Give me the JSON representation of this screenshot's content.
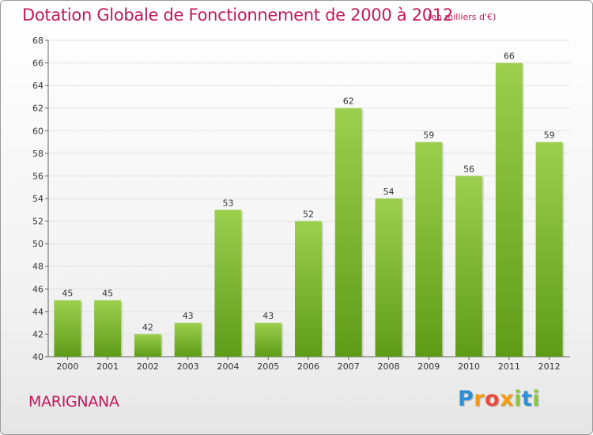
{
  "header": {
    "title": "Dotation Globale de Fonctionnement de 2000 à 2012",
    "unit_note": "(en milliers d'€)"
  },
  "footer": {
    "commune": "MARIGNANA",
    "logo_letters": [
      "P",
      "r",
      "o",
      "x",
      "i",
      "t",
      "i"
    ]
  },
  "colors": {
    "accent": "#c2185b",
    "bar_top": "#9ccf4e",
    "bar_bottom": "#5e9c18",
    "grid": "#e0e0e0"
  },
  "chart_data": {
    "type": "bar",
    "title": "Dotation Globale de Fonctionnement de 2000 à 2012",
    "subtitle": "(en milliers d'€)",
    "categories": [
      "2000",
      "2001",
      "2002",
      "2003",
      "2004",
      "2005",
      "2006",
      "2007",
      "2008",
      "2009",
      "2010",
      "2011",
      "2012"
    ],
    "values": [
      45,
      45,
      42,
      43,
      53,
      43,
      52,
      62,
      54,
      59,
      56,
      66,
      59
    ],
    "ylim": [
      40,
      68
    ],
    "yticks": [
      40,
      42,
      44,
      46,
      48,
      50,
      52,
      54,
      56,
      58,
      60,
      62,
      64,
      66,
      68
    ],
    "grid": true,
    "legend": "none"
  }
}
